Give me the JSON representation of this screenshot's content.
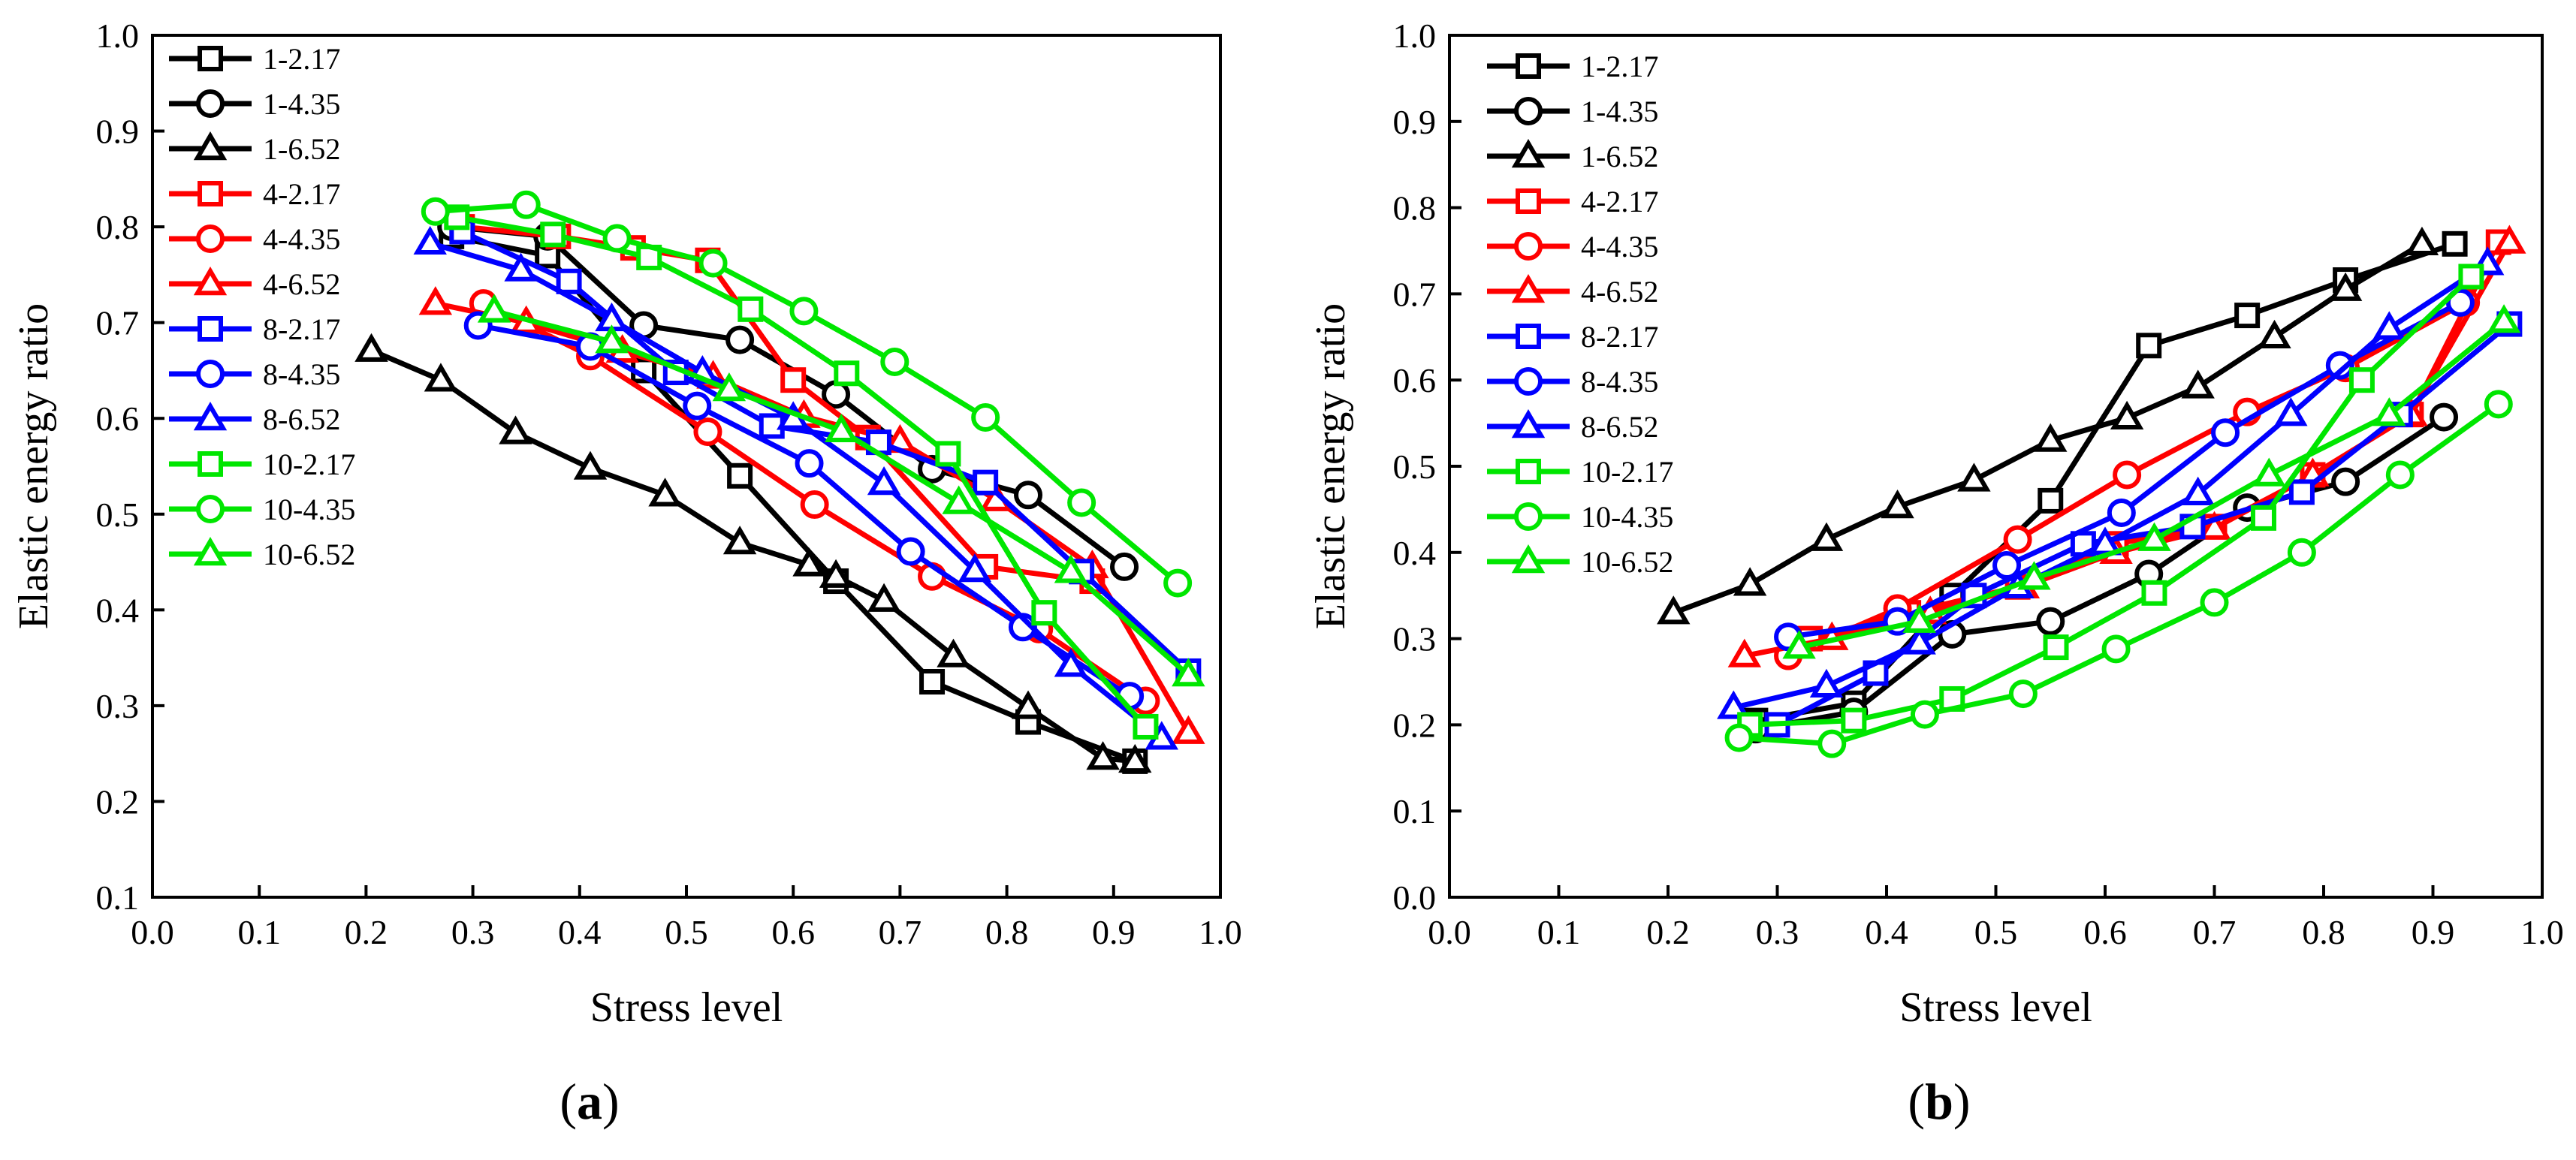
{
  "colors": {
    "black": "#000000",
    "red": "#ff0000",
    "blue": "#0000ff",
    "green": "#00e600"
  },
  "chart_data": [
    {
      "type": "line",
      "panel_label": "(a)",
      "panel_letter": "a",
      "xlabel": "Stress level",
      "ylabel": "Elastic energy ratio",
      "xlim": [
        0.0,
        1.0
      ],
      "ylim": [
        0.1,
        1.0
      ],
      "xticks": [
        "0.0",
        "0.1",
        "0.2",
        "0.3",
        "0.4",
        "0.5",
        "0.6",
        "0.7",
        "0.8",
        "0.9",
        "1.0"
      ],
      "yticks": [
        "0.1",
        "0.2",
        "0.3",
        "0.4",
        "0.5",
        "0.6",
        "0.7",
        "0.8",
        "0.9",
        "1.0"
      ],
      "legend_position": "top-left",
      "series": [
        {
          "name": "1-2.17",
          "color": "black",
          "marker": "square",
          "x": [
            0.28,
            0.37,
            0.46,
            0.55,
            0.64,
            0.73,
            0.82,
            0.92
          ],
          "y": [
            0.79,
            0.77,
            0.65,
            0.54,
            0.43,
            0.325,
            0.283,
            0.242
          ]
        },
        {
          "name": "1-4.35",
          "color": "black",
          "marker": "circle",
          "x": [
            0.28,
            0.37,
            0.46,
            0.55,
            0.64,
            0.73,
            0.82,
            0.91
          ],
          "y": [
            0.8,
            0.79,
            0.697,
            0.682,
            0.625,
            0.547,
            0.52,
            0.445
          ]
        },
        {
          "name": "1-6.52",
          "color": "black",
          "marker": "triangle",
          "x": [
            0.205,
            0.27,
            0.34,
            0.41,
            0.48,
            0.55,
            0.615,
            0.64,
            0.685,
            0.75,
            0.82,
            0.89,
            0.92
          ],
          "y": [
            0.671,
            0.64,
            0.585,
            0.548,
            0.52,
            0.47,
            0.447,
            0.435,
            0.41,
            0.352,
            0.298,
            0.245,
            0.242
          ]
        },
        {
          "name": "4-2.17",
          "color": "red",
          "marker": "square",
          "x": [
            0.29,
            0.38,
            0.45,
            0.52,
            0.6,
            0.67,
            0.78,
            0.88
          ],
          "y": [
            0.8,
            0.79,
            0.778,
            0.765,
            0.64,
            0.58,
            0.445,
            0.43
          ]
        },
        {
          "name": "4-4.35",
          "color": "red",
          "marker": "circle",
          "x": [
            0.31,
            0.41,
            0.52,
            0.62,
            0.73,
            0.83,
            0.93
          ],
          "y": [
            0.72,
            0.665,
            0.586,
            0.51,
            0.435,
            0.38,
            0.305
          ]
        },
        {
          "name": "4-6.52",
          "color": "red",
          "marker": "triangle",
          "x": [
            0.265,
            0.35,
            0.44,
            0.525,
            0.61,
            0.7,
            0.79,
            0.88,
            0.97
          ],
          "y": [
            0.72,
            0.7,
            0.67,
            0.643,
            0.602,
            0.576,
            0.515,
            0.445,
            0.272
          ]
        },
        {
          "name": "8-2.17",
          "color": "blue",
          "marker": "square",
          "x": [
            0.29,
            0.39,
            0.49,
            0.58,
            0.68,
            0.78,
            0.87,
            0.97
          ],
          "y": [
            0.795,
            0.743,
            0.648,
            0.592,
            0.575,
            0.533,
            0.44,
            0.336
          ]
        },
        {
          "name": "8-4.35",
          "color": "blue",
          "marker": "circle",
          "x": [
            0.305,
            0.41,
            0.51,
            0.615,
            0.71,
            0.815,
            0.915
          ],
          "y": [
            0.697,
            0.675,
            0.613,
            0.553,
            0.461,
            0.382,
            0.31
          ]
        },
        {
          "name": "8-6.52",
          "color": "blue",
          "marker": "triangle",
          "x": [
            0.26,
            0.345,
            0.43,
            0.515,
            0.6,
            0.685,
            0.77,
            0.86,
            0.945
          ],
          "y": [
            0.783,
            0.755,
            0.703,
            0.648,
            0.6,
            0.532,
            0.441,
            0.342,
            0.266
          ]
        },
        {
          "name": "10-2.17",
          "color": "green",
          "marker": "square",
          "x": [
            0.285,
            0.375,
            0.465,
            0.56,
            0.65,
            0.745,
            0.835,
            0.93
          ],
          "y": [
            0.81,
            0.792,
            0.768,
            0.714,
            0.647,
            0.563,
            0.397,
            0.278
          ]
        },
        {
          "name": "10-4.35",
          "color": "green",
          "marker": "circle",
          "x": [
            0.265,
            0.35,
            0.435,
            0.525,
            0.61,
            0.695,
            0.78,
            0.87,
            0.96
          ],
          "y": [
            0.816,
            0.823,
            0.788,
            0.762,
            0.712,
            0.659,
            0.601,
            0.512,
            0.428
          ]
        },
        {
          "name": "10-6.52",
          "color": "green",
          "marker": "triangle",
          "x": [
            0.32,
            0.43,
            0.54,
            0.645,
            0.755,
            0.86,
            0.97
          ],
          "y": [
            0.712,
            0.68,
            0.63,
            0.587,
            0.512,
            0.44,
            0.332
          ]
        }
      ]
    },
    {
      "type": "line",
      "panel_label": "(b)",
      "panel_letter": "b",
      "xlabel": "Stress level",
      "ylabel": "Elastic energy ratio",
      "xlim": [
        0.0,
        1.0
      ],
      "ylim": [
        0.0,
        1.0
      ],
      "xticks": [
        "0.0",
        "0.1",
        "0.2",
        "0.3",
        "0.4",
        "0.5",
        "0.6",
        "0.7",
        "0.8",
        "0.9",
        "1.0"
      ],
      "yticks": [
        "0.0",
        "0.1",
        "0.2",
        "0.3",
        "0.4",
        "0.5",
        "0.6",
        "0.7",
        "0.8",
        "0.9",
        "1.0"
      ],
      "legend_position": "top-left",
      "series": [
        {
          "name": "1-2.17",
          "color": "black",
          "marker": "square",
          "x": [
            0.28,
            0.37,
            0.46,
            0.55,
            0.64,
            0.73,
            0.82,
            0.92
          ],
          "y": [
            0.205,
            0.225,
            0.35,
            0.46,
            0.64,
            0.675,
            0.716,
            0.758
          ]
        },
        {
          "name": "1-4.35",
          "color": "black",
          "marker": "circle",
          "x": [
            0.28,
            0.37,
            0.46,
            0.55,
            0.64,
            0.73,
            0.82,
            0.91
          ],
          "y": [
            0.195,
            0.215,
            0.305,
            0.32,
            0.375,
            0.452,
            0.482,
            0.557
          ]
        },
        {
          "name": "1-6.52",
          "color": "black",
          "marker": "triangle",
          "x": [
            0.205,
            0.275,
            0.345,
            0.41,
            0.48,
            0.55,
            0.62,
            0.685,
            0.755,
            0.82,
            0.89
          ],
          "y": [
            0.33,
            0.363,
            0.415,
            0.453,
            0.484,
            0.53,
            0.556,
            0.592,
            0.65,
            0.705,
            0.758
          ]
        },
        {
          "name": "4-2.17",
          "color": "red",
          "marker": "square",
          "x": [
            0.33,
            0.42,
            0.52,
            0.61,
            0.7,
            0.79,
            0.88,
            0.96
          ],
          "y": [
            0.3,
            0.33,
            0.36,
            0.41,
            0.43,
            0.49,
            0.56,
            0.76
          ]
        },
        {
          "name": "4-4.35",
          "color": "red",
          "marker": "circle",
          "x": [
            0.31,
            0.41,
            0.52,
            0.62,
            0.73,
            0.82,
            0.93
          ],
          "y": [
            0.28,
            0.335,
            0.415,
            0.49,
            0.563,
            0.614,
            0.69
          ]
        },
        {
          "name": "4-6.52",
          "color": "red",
          "marker": "triangle",
          "x": [
            0.27,
            0.35,
            0.44,
            0.525,
            0.61,
            0.7,
            0.79,
            0.88,
            0.97
          ],
          "y": [
            0.28,
            0.3,
            0.33,
            0.36,
            0.4,
            0.428,
            0.49,
            0.56,
            0.76
          ]
        },
        {
          "name": "8-2.17",
          "color": "blue",
          "marker": "square",
          "x": [
            0.3,
            0.39,
            0.48,
            0.58,
            0.68,
            0.78,
            0.87,
            0.97
          ],
          "y": [
            0.2,
            0.26,
            0.35,
            0.41,
            0.43,
            0.47,
            0.56,
            0.665
          ]
        },
        {
          "name": "8-4.35",
          "color": "blue",
          "marker": "circle",
          "x": [
            0.31,
            0.41,
            0.51,
            0.615,
            0.71,
            0.815,
            0.925
          ],
          "y": [
            0.302,
            0.32,
            0.385,
            0.446,
            0.539,
            0.617,
            0.69
          ]
        },
        {
          "name": "8-6.52",
          "color": "blue",
          "marker": "triangle",
          "x": [
            0.26,
            0.345,
            0.43,
            0.52,
            0.6,
            0.685,
            0.77,
            0.86,
            0.95
          ],
          "y": [
            0.22,
            0.245,
            0.295,
            0.36,
            0.41,
            0.468,
            0.56,
            0.66,
            0.735
          ]
        },
        {
          "name": "10-2.17",
          "color": "green",
          "marker": "square",
          "x": [
            0.275,
            0.37,
            0.46,
            0.555,
            0.645,
            0.745,
            0.835,
            0.935
          ],
          "y": [
            0.2,
            0.205,
            0.23,
            0.29,
            0.353,
            0.44,
            0.6,
            0.72
          ]
        },
        {
          "name": "10-4.35",
          "color": "green",
          "marker": "circle",
          "x": [
            0.265,
            0.35,
            0.435,
            0.525,
            0.61,
            0.7,
            0.78,
            0.87,
            0.96
          ],
          "y": [
            0.185,
            0.178,
            0.212,
            0.236,
            0.288,
            0.342,
            0.4,
            0.49,
            0.572
          ]
        },
        {
          "name": "10-6.52",
          "color": "green",
          "marker": "triangle",
          "x": [
            0.32,
            0.43,
            0.535,
            0.645,
            0.75,
            0.86,
            0.965
          ],
          "y": [
            0.29,
            0.32,
            0.37,
            0.415,
            0.49,
            0.56,
            0.668
          ]
        }
      ]
    }
  ]
}
